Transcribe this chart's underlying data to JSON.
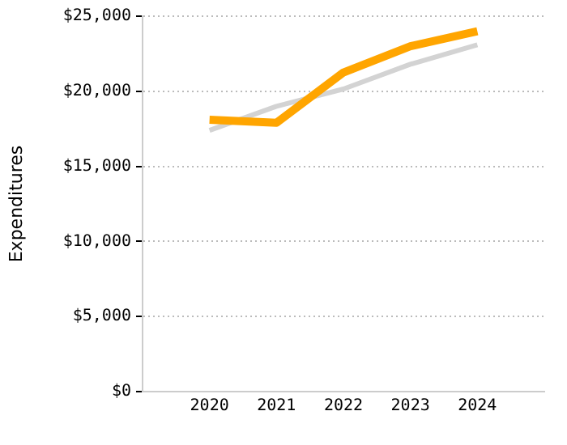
{
  "chart_data": {
    "type": "line",
    "ylabel": "Expenditures",
    "x": [
      2020,
      2021,
      2022,
      2023,
      2024
    ],
    "xlim": [
      2019,
      2025
    ],
    "xticks": [
      2020,
      2021,
      2022,
      2023,
      2024
    ],
    "ylim": [
      0,
      25000
    ],
    "yticks": [
      {
        "value": 0,
        "label": "$0"
      },
      {
        "value": 5000,
        "label": "$5,000"
      },
      {
        "value": 10000,
        "label": "$10,000"
      },
      {
        "value": 15000,
        "label": "$15,000"
      },
      {
        "value": 20000,
        "label": "$20,000"
      },
      {
        "value": 25000,
        "label": "$25,000"
      }
    ],
    "grid": "y",
    "legend": false,
    "series": [
      {
        "color": "#d3d3d3",
        "values": [
          17400,
          19000,
          20150,
          21800,
          23100
        ]
      },
      {
        "color": "#ffa500",
        "values": [
          18100,
          17900,
          21250,
          23000,
          24000
        ]
      }
    ]
  }
}
